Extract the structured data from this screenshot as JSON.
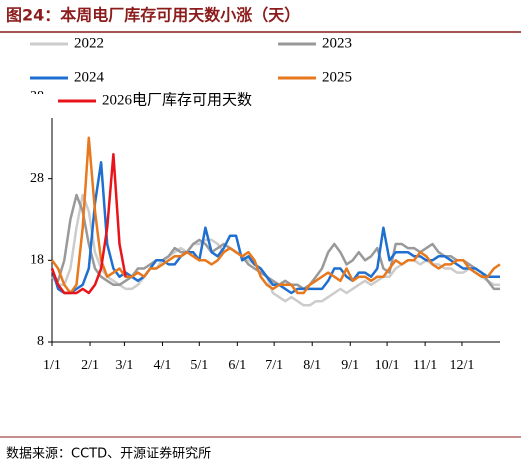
{
  "chart_data": {
    "type": "line",
    "title": "图24：本周电厂库存可用天数小涨（天）",
    "source": "数据来源：CCTD、开源证券研究所",
    "x": [
      0,
      5,
      10,
      15,
      20,
      25,
      30,
      35,
      40,
      45,
      50,
      55,
      60,
      65,
      70,
      75,
      80,
      85,
      90,
      95,
      100,
      105,
      110,
      115,
      120,
      125,
      130,
      135,
      140,
      145,
      150,
      155,
      160,
      165,
      170,
      175,
      180,
      185,
      190,
      195,
      200,
      205,
      210,
      215,
      220,
      225,
      230,
      235,
      240,
      245,
      250,
      255,
      260,
      265,
      270,
      275,
      280,
      285,
      290,
      295,
      300,
      305,
      310,
      315,
      320,
      325,
      330,
      335,
      340,
      345,
      350,
      355,
      360,
      365
    ],
    "xlim": [
      0,
      365
    ],
    "xticks": [
      {
        "value": 0,
        "label": "1/1"
      },
      {
        "value": 31,
        "label": "2/1"
      },
      {
        "value": 59,
        "label": "3/1"
      },
      {
        "value": 90,
        "label": "4/1"
      },
      {
        "value": 120,
        "label": "5/1"
      },
      {
        "value": 151,
        "label": "6/1"
      },
      {
        "value": 181,
        "label": "7/1"
      },
      {
        "value": 212,
        "label": "8/1"
      },
      {
        "value": 243,
        "label": "9/1"
      },
      {
        "value": 273,
        "label": "10/1"
      },
      {
        "value": 304,
        "label": "11/1"
      },
      {
        "value": 334,
        "label": "12/1"
      }
    ],
    "ylim": [
      8,
      38
    ],
    "yticks": [
      8,
      18,
      28,
      38
    ],
    "series": [
      {
        "name": "2022",
        "color": "#cccccc",
        "values": [
          16,
          15,
          15,
          17,
          22,
          26,
          24,
          19,
          17,
          16,
          15.5,
          15,
          14.5,
          14.5,
          15,
          16,
          17,
          17,
          18,
          18.5,
          19,
          19.5,
          19,
          20,
          20,
          20.5,
          20.5,
          20,
          19,
          19.5,
          19,
          18.5,
          18,
          17.5,
          17,
          16,
          14,
          13.5,
          13,
          13.5,
          13,
          12.5,
          12.5,
          13,
          13,
          13.5,
          14,
          14.5,
          14,
          14.5,
          15,
          15.5,
          15,
          15.5,
          16,
          16,
          17,
          17.5,
          18,
          18,
          17.5,
          18,
          17.5,
          17.5,
          17,
          17,
          16.5,
          16.5,
          17,
          16.5,
          16,
          15.5,
          15,
          15
        ]
      },
      {
        "name": "2023",
        "color": "#999999",
        "values": [
          16,
          15.5,
          18,
          23,
          26,
          24,
          20,
          17,
          16,
          15.5,
          15,
          15,
          15.5,
          16,
          17,
          17,
          17.5,
          18,
          18,
          18.5,
          19.5,
          19,
          19,
          20,
          20.5,
          20,
          19,
          19.5,
          20,
          19.5,
          19,
          18.5,
          17.5,
          17,
          16.5,
          16,
          15.5,
          15,
          15.5,
          15,
          15,
          14.5,
          15,
          16,
          17,
          19,
          20,
          19,
          17.5,
          18,
          19,
          18,
          18.5,
          19.5,
          17,
          16.5,
          20,
          20,
          19.5,
          19.5,
          19,
          19.5,
          20,
          19,
          18.5,
          18.5,
          18,
          18,
          17.5,
          17,
          16.5,
          15.5,
          14.5,
          14.5
        ]
      },
      {
        "name": "2024",
        "color": "#1f6fd1",
        "values": [
          17,
          14.5,
          14,
          14,
          14.5,
          15,
          17,
          25,
          30,
          20,
          17,
          16,
          16.5,
          16,
          15.5,
          16,
          17,
          18,
          18,
          17.5,
          17.5,
          18.5,
          19,
          19,
          18,
          22,
          19,
          18.5,
          19.5,
          21,
          21,
          18,
          18.5,
          17.5,
          17,
          16,
          15,
          15,
          14.5,
          14,
          14.5,
          14.5,
          14.5,
          14.5,
          14.5,
          15.5,
          17,
          17,
          16,
          15.5,
          16.5,
          16.5,
          16,
          17,
          22,
          18,
          19,
          19,
          19,
          18.5,
          18.5,
          18,
          18,
          18.5,
          18.5,
          18,
          17.5,
          17,
          17,
          17,
          16.5,
          16,
          16,
          16
        ]
      },
      {
        "name": "2025",
        "color": "#e8781e",
        "values": [
          18,
          17,
          15,
          14,
          15,
          22,
          33,
          24,
          18,
          16,
          16.5,
          17,
          16,
          16,
          16.5,
          16,
          17,
          17,
          17.5,
          18,
          18.5,
          18.5,
          19,
          18.5,
          18,
          18,
          17.5,
          18,
          19,
          19.5,
          19,
          18.5,
          19,
          18,
          16,
          15,
          14.5,
          15,
          15,
          15,
          14,
          14,
          15,
          15.5,
          16,
          16.5,
          16,
          15.5,
          17,
          15.5,
          16,
          16,
          15.5,
          16,
          16,
          17,
          18,
          17.5,
          18,
          18,
          19,
          18.5,
          17.5,
          17,
          17.5,
          17.5,
          18,
          18,
          17,
          16.5,
          16,
          16,
          17,
          17.5
        ]
      },
      {
        "name": "2026电厂库存可用天数",
        "color": "#e8141a",
        "values": [
          17,
          15,
          14,
          14,
          14,
          14.5,
          14,
          15,
          17,
          22,
          31,
          20,
          16,
          null,
          null,
          null,
          null,
          null,
          null,
          null,
          null,
          null,
          null,
          null,
          null,
          null,
          null,
          null,
          null,
          null,
          null,
          null,
          null,
          null,
          null,
          null,
          null,
          null,
          null,
          null,
          null,
          null,
          null,
          null,
          null,
          null,
          null,
          null,
          null,
          null,
          null,
          null,
          null,
          null,
          null,
          null,
          null,
          null,
          null,
          null,
          null,
          null,
          null,
          null,
          null,
          null,
          null,
          null,
          null,
          null,
          null,
          null,
          null,
          null
        ]
      }
    ]
  }
}
